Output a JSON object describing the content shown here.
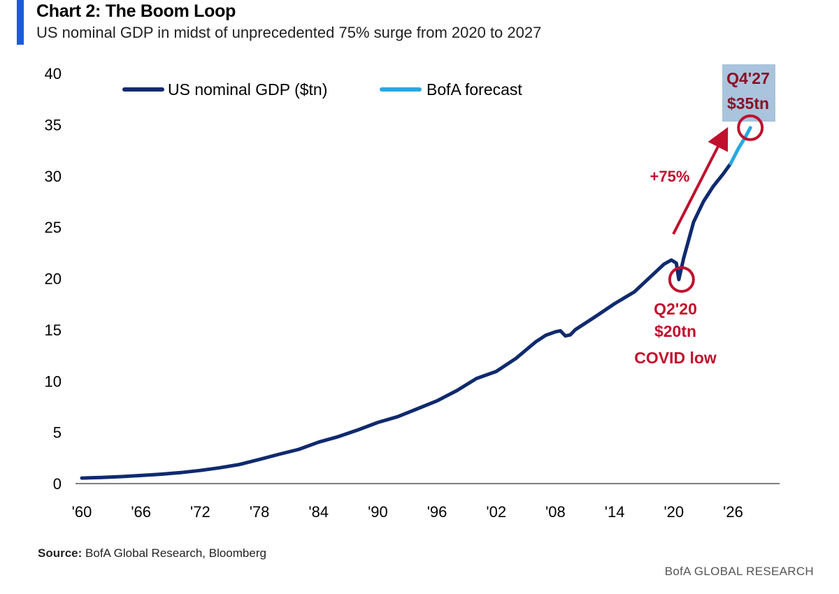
{
  "title": "Chart 2: The Boom Loop",
  "subtitle": "US nominal GDP in midst of unprecedented 75% surge from 2020 to 2027",
  "source_label": "Source:",
  "source_text": "BofA Global Research, Bloomberg",
  "brand": "BofA GLOBAL RESEARCH",
  "colors": {
    "history": "#0f2a6e",
    "forecast": "#29a8e0",
    "annotation": "#c0102e",
    "title_bar": "#1e5bd8",
    "highlight_box": "#a9c4dc"
  },
  "annotations": {
    "growth": "+75%",
    "low_line1": "Q2'20",
    "low_line2": "$20tn",
    "low_line3": "COVID low",
    "high_line1": "Q4'27",
    "high_line2": "$35tn"
  },
  "chart_data": {
    "type": "line",
    "title": "Chart 2: The Boom Loop",
    "subtitle": "US nominal GDP in midst of unprecedented 75% surge from 2020 to 2027",
    "xlabel": "",
    "ylabel": "",
    "xlim": [
      1960,
      2030.5
    ],
    "ylim": [
      0,
      40
    ],
    "x_tick_values": [
      1960,
      1966,
      1972,
      1978,
      1984,
      1990,
      1996,
      2002,
      2008,
      2014,
      2020,
      2026
    ],
    "x_tick_labels": [
      "'60",
      "'66",
      "'72",
      "'78",
      "'84",
      "'90",
      "'96",
      "'02",
      "'08",
      "'14",
      "'20",
      "'26"
    ],
    "y_ticks": [
      0,
      5,
      10,
      15,
      20,
      25,
      30,
      35,
      40
    ],
    "grid": false,
    "legend_position": "top-left",
    "series": [
      {
        "name": "US nominal GDP ($tn)",
        "x": [
          1960,
          1962,
          1964,
          1966,
          1968,
          1970,
          1972,
          1974,
          1976,
          1978,
          1980,
          1982,
          1984,
          1986,
          1988,
          1990,
          1992,
          1994,
          1996,
          1998,
          2000,
          2002,
          2004,
          2006,
          2007,
          2008,
          2008.5,
          2009,
          2009.5,
          2010,
          2012,
          2014,
          2016,
          2018,
          2019,
          2019.75,
          2020.25,
          2020.5,
          2021,
          2022,
          2023,
          2024,
          2025,
          2025.75
        ],
        "y": [
          0.54,
          0.6,
          0.68,
          0.79,
          0.91,
          1.07,
          1.28,
          1.55,
          1.87,
          2.36,
          2.86,
          3.34,
          4.04,
          4.58,
          5.24,
          5.96,
          6.52,
          7.29,
          8.07,
          9.06,
          10.25,
          10.94,
          12.21,
          13.82,
          14.45,
          14.8,
          14.9,
          14.4,
          14.5,
          15.0,
          16.25,
          17.55,
          18.7,
          20.5,
          21.4,
          21.8,
          21.5,
          19.9,
          22.0,
          25.5,
          27.5,
          29.0,
          30.2,
          31.2
        ]
      },
      {
        "name": "BofA forecast",
        "x": [
          2025.75,
          2026.5,
          2027.25,
          2027.75
        ],
        "y": [
          31.2,
          32.6,
          33.8,
          34.7
        ]
      }
    ]
  }
}
